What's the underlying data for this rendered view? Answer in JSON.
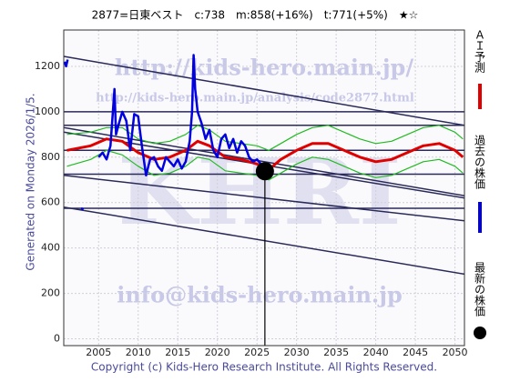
{
  "chart_data": {
    "type": "line",
    "title": "2877=日東ベスト　c:738　m:858(+16%)　t:771(+5%)　★☆",
    "generated": "Generated on Monday 2026/1/5.",
    "copyright": "Copyright (c) Kids-Hero Research Institute. All Rights Reserved.",
    "annotations": [
      "http://kids-hero.main.jp/",
      "http://kids-hero.main.jp/analysis/code2877.html",
      "KHRI",
      "info@kids-hero.main.jp"
    ],
    "xlim": [
      2000.6,
      2051.2
    ],
    "ylim": [
      -30,
      1360
    ],
    "xticks": [
      2005,
      2010,
      2015,
      2020,
      2025,
      2030,
      2035,
      2040,
      2045,
      2050
    ],
    "yticks": [
      0,
      200,
      400,
      600,
      800,
      1000,
      1200
    ],
    "grid": true,
    "series": [
      {
        "name": "ＡＩ予測",
        "color": "#e00000",
        "x": [
          2001,
          2004,
          2006,
          2008,
          2010,
          2012,
          2014,
          2016,
          2017.5,
          2019,
          2021,
          2023,
          2025,
          2026.5,
          2028,
          2030,
          2032,
          2034,
          2036,
          2038,
          2040,
          2042,
          2044,
          2046,
          2048,
          2050,
          2051
        ],
        "values": [
          830,
          850,
          880,
          870,
          820,
          790,
          800,
          830,
          870,
          850,
          800,
          790,
          770,
          745,
          790,
          830,
          860,
          860,
          830,
          800,
          780,
          790,
          820,
          850,
          860,
          830,
          800
        ]
      },
      {
        "name": "過去の株価",
        "color": "#0000e0",
        "x": [
          2000.7,
          2000.9,
          2001.1,
          2001.3,
          2002.8,
          2003.1,
          2003.3,
          2005.0,
          2005.5,
          2006.0,
          2006.5,
          2007.0,
          2007.2,
          2007.5,
          2008.0,
          2008.5,
          2009.0,
          2009.5,
          2010.0,
          2010.5,
          2011.0,
          2011.5,
          2012.0,
          2012.5,
          2013.0,
          2013.5,
          2014.0,
          2014.5,
          2015.0,
          2015.5,
          2016.0,
          2016.5,
          2016.8,
          2017.0,
          2017.2,
          2017.5,
          2018.0,
          2018.5,
          2019.0,
          2019.5,
          2020.0,
          2020.5,
          2021.0,
          2021.5,
          2022.0,
          2022.5,
          2023.0,
          2023.5,
          2024.0,
          2024.5,
          2025.0,
          2025.5,
          2026.0
        ],
        "values": [
          1220,
          1200,
          1230,
          null,
          575,
          570,
          null,
          800,
          820,
          790,
          850,
          1100,
          900,
          940,
          1000,
          960,
          830,
          990,
          980,
          840,
          720,
          790,
          800,
          760,
          740,
          800,
          780,
          760,
          790,
          750,
          780,
          870,
          1000,
          1250,
          1100,
          1000,
          950,
          880,
          920,
          830,
          800,
          880,
          900,
          840,
          880,
          820,
          870,
          850,
          800,
          780,
          790,
          770,
          738
        ]
      }
    ],
    "bands": [
      {
        "color": "#22bb22",
        "values": [
          900,
          910,
          930,
          930,
          880,
          860,
          870,
          900,
          940,
          920,
          870,
          860,
          850,
          830,
          860,
          900,
          930,
          940,
          910,
          880,
          860,
          870,
          900,
          930,
          940,
          910,
          880
        ]
      },
      {
        "color": "#22bb22",
        "values": [
          760,
          790,
          830,
          810,
          760,
          720,
          730,
          760,
          800,
          790,
          740,
          730,
          720,
          700,
          730,
          770,
          800,
          790,
          760,
          730,
          710,
          720,
          750,
          780,
          790,
          760,
          730
        ]
      }
    ],
    "trend_color": "#2a2a5a",
    "trend_lines": [
      {
        "x": [
          2000.6,
          2051.2
        ],
        "values": [
          1244,
          940
        ]
      },
      {
        "x": [
          2000.6,
          2051.2
        ],
        "values": [
          1000,
          1000
        ]
      },
      {
        "x": [
          2000.6,
          2051.2
        ],
        "values": [
          940,
          940
        ]
      },
      {
        "x": [
          2000.6,
          2051.2
        ],
        "values": [
          930,
          630
        ]
      },
      {
        "x": [
          2000.6,
          2051.2
        ],
        "values": [
          910,
          620
        ]
      },
      {
        "x": [
          2000.6,
          2051.2
        ],
        "values": [
          830,
          830
        ]
      },
      {
        "x": [
          2000.6,
          2051.2
        ],
        "values": [
          725,
          725
        ]
      },
      {
        "x": [
          2000.6,
          2051.2
        ],
        "values": [
          720,
          520
        ]
      },
      {
        "x": [
          2000.6,
          2051.2
        ],
        "values": [
          575,
          575
        ]
      },
      {
        "x": [
          2000.6,
          2051.2
        ],
        "values": [
          580,
          285
        ]
      }
    ],
    "latest": {
      "name": "最新の株価",
      "x": 2026.0,
      "value": 738,
      "color": "#000000"
    }
  }
}
